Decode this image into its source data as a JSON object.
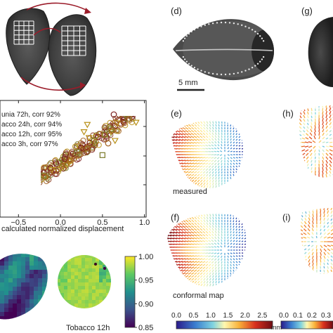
{
  "panel_labels": {
    "d": "(d)",
    "g": "(g)",
    "e": "(e)",
    "h": "(h)",
    "f": "(f)",
    "i": "(i)"
  },
  "scale_bar_label": "5 mm",
  "map_labels": {
    "measured": "measured",
    "conformal": "conformal map"
  },
  "heatmap_label": "Tobacco 12h",
  "chart_data": [
    {
      "type": "scatter",
      "xlabel": "calculated normalized displacement",
      "x_tick_labels": [
        "−0.5",
        "0.0",
        "0.5",
        "1.0"
      ],
      "xlim": [
        -0.72,
        1.02
      ],
      "ylim": [
        -0.55,
        1.05
      ],
      "legend_placement": "top-left",
      "series": [
        {
          "name": "unia 72h, corr 92%",
          "color": "#7a1f1f",
          "marker": "circle",
          "points": [
            [
              -0.66,
              -0.38
            ],
            [
              -0.6,
              -0.3
            ],
            [
              -0.55,
              -0.27
            ],
            [
              -0.5,
              -0.18
            ],
            [
              -0.45,
              -0.16
            ],
            [
              -0.4,
              -0.08
            ],
            [
              -0.34,
              -0.06
            ],
            [
              -0.28,
              0.02
            ],
            [
              -0.2,
              0.06
            ],
            [
              -0.12,
              0.12
            ],
            [
              -0.05,
              0.18
            ],
            [
              0.05,
              0.25
            ],
            [
              0.15,
              0.32
            ],
            [
              0.25,
              0.4
            ],
            [
              0.35,
              0.47
            ],
            [
              0.45,
              0.55
            ],
            [
              0.55,
              0.62
            ],
            [
              0.65,
              0.7
            ],
            [
              0.75,
              0.78
            ],
            [
              0.85,
              0.86
            ],
            [
              0.95,
              0.94
            ]
          ]
        },
        {
          "name": "acco 24h, corr 94%",
          "color": "#b89018",
          "marker": "triangle-down",
          "points": [
            [
              -0.7,
              -0.3
            ],
            [
              -0.6,
              -0.4
            ],
            [
              -0.4,
              -0.32
            ],
            [
              -0.32,
              -0.2
            ],
            [
              -0.1,
              0.1
            ],
            [
              0.28,
              0.62
            ],
            [
              0.32,
              0.72
            ],
            [
              0.34,
              0.54
            ],
            [
              0.6,
              0.62
            ],
            [
              0.65,
              0.5
            ],
            [
              0.8,
              0.9
            ],
            [
              0.9,
              0.75
            ],
            [
              0.95,
              1.0
            ]
          ]
        },
        {
          "name": "acco 12h, corr 95%",
          "color": "#7b7a2a",
          "marker": "square",
          "points": [
            [
              -0.62,
              -0.32
            ],
            [
              -0.5,
              -0.28
            ],
            [
              -0.4,
              -0.1
            ],
            [
              -0.2,
              0.02
            ],
            [
              -0.02,
              0.2
            ],
            [
              0.2,
              0.34
            ],
            [
              0.4,
              0.5
            ],
            [
              0.5,
              0.3
            ],
            [
              0.6,
              0.66
            ],
            [
              0.8,
              0.8
            ],
            [
              0.9,
              0.88
            ]
          ]
        },
        {
          "name": "acco 3h, corr 97%",
          "color": "#a0601c",
          "marker": "circle-open",
          "points": [
            [
              -0.58,
              -0.34
            ],
            [
              -0.48,
              -0.25
            ],
            [
              -0.38,
              -0.16
            ],
            [
              -0.28,
              -0.06
            ],
            [
              -0.18,
              0.0
            ],
            [
              -0.08,
              0.08
            ],
            [
              0.02,
              0.15
            ],
            [
              0.12,
              0.24
            ],
            [
              0.22,
              0.3
            ],
            [
              0.32,
              0.4
            ],
            [
              0.42,
              0.48
            ],
            [
              0.52,
              0.58
            ],
            [
              0.62,
              0.64
            ],
            [
              0.72,
              0.72
            ],
            [
              0.82,
              0.8
            ]
          ]
        }
      ]
    },
    {
      "type": "heatmap",
      "colorbar_ticks": [
        "1.00",
        "0.95",
        "0.90",
        "0.85"
      ],
      "colorbar_range": [
        0.85,
        1.0
      ]
    },
    {
      "type": "heatmap",
      "colorbar_ticks_left": [
        "0.0",
        "0.5",
        "1.0",
        "1.5",
        "2.0",
        "2.5"
      ],
      "colorbar_ticks_right": [
        "0.0",
        "0.1",
        "0.2",
        "0.3"
      ],
      "colorbar_unit": "mm",
      "colorbar_range": [
        0,
        2.8
      ]
    }
  ]
}
